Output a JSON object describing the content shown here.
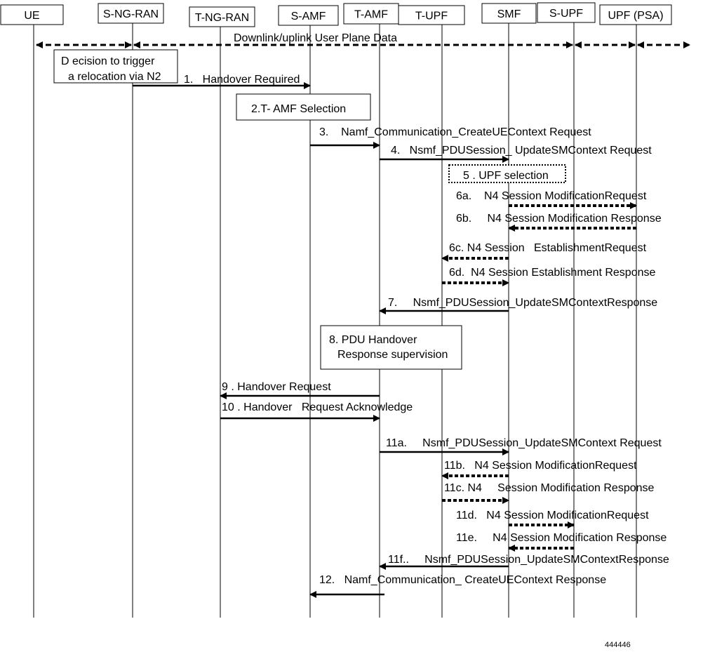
{
  "participants": [
    "UE",
    "S-NG-RAN",
    "T-NG-RAN",
    "S-AMF",
    "T-AMF",
    "T-UPF",
    "SMF",
    "S-UPF",
    "UPF (PSA)"
  ],
  "user_plane": {
    "label": "Downlink/uplink  User Plane Data"
  },
  "notes": [
    {
      "id": "decision",
      "lines": [
        "D  ecision to trigger",
        "a relocation via N2"
      ],
      "style": "solid"
    },
    {
      "id": "amf-selection",
      "lines": [
        "2.T-  AMF Selection"
      ],
      "style": "solid"
    },
    {
      "id": "upf-selection",
      "lines": [
        "5 . UPF selection"
      ],
      "style": "dotted"
    },
    {
      "id": "pdu-handover",
      "lines": [
        "8.  PDU Handover",
        "Response supervision"
      ],
      "style": "solid"
    }
  ],
  "messages": [
    {
      "label": "1.   Handover Required",
      "from": "S-NG-RAN",
      "to": "S-AMF",
      "style": "solid"
    },
    {
      "label": "3.    Namf_Communication_CreateUEContext Request",
      "from": "S-AMF",
      "to": "T-AMF",
      "style": "solid"
    },
    {
      "label": "4.   Nsmf_PDUSession_ UpdateSMContext Request",
      "from": "T-AMF",
      "to": "SMF",
      "style": "solid"
    },
    {
      "label": "6a.    N4 Session ModificationRequest",
      "from": "SMF",
      "to": "UPF (PSA)",
      "style": "dashed"
    },
    {
      "label": "6b.     N4 Session Modification Response",
      "from": "UPF (PSA)",
      "to": "SMF",
      "style": "dashed"
    },
    {
      "label": "6c. N4 Session   EstablishmentRequest",
      "from": "SMF",
      "to": "T-UPF",
      "style": "dashed"
    },
    {
      "label": "6d.  N4 Session Establishment Response",
      "from": "T-UPF",
      "to": "SMF",
      "style": "dashed"
    },
    {
      "label": "7.     Nsmf_PDUSession_UpdateSMContextResponse",
      "from": "SMF",
      "to": "T-AMF",
      "style": "solid"
    },
    {
      "label": "9 . Handover Request",
      "from": "T-AMF",
      "to": "T-NG-RAN",
      "style": "solid"
    },
    {
      "label": "10 . Handover   Request Acknowledge",
      "from": "T-NG-RAN",
      "to": "T-AMF",
      "style": "solid"
    },
    {
      "label": "11a.     Nsmf_PDUSession_UpdateSMContext Request",
      "from": "T-AMF",
      "to": "SMF",
      "style": "solid"
    },
    {
      "label": "11b.   N4 Session ModificationRequest",
      "from": "SMF",
      "to": "T-UPF",
      "style": "dashed"
    },
    {
      "label": "11c. N4     Session Modification Response",
      "from": "T-UPF",
      "to": "SMF",
      "style": "dashed"
    },
    {
      "label": "11d.   N4 Session ModificationRequest",
      "from": "SMF",
      "to": "S-UPF",
      "style": "dashed"
    },
    {
      "label": "11e.     N4 Session Modification Response",
      "from": "S-UPF",
      "to": "SMF",
      "style": "dashed"
    },
    {
      "label": "11f..     Nsmf_PDUSession_UpdateSMContextResponse",
      "from": "SMF",
      "to": "T-AMF",
      "style": "solid"
    },
    {
      "label": "12.   Namf_Communication_ CreateUEContext Response",
      "from": "T-AMF",
      "to": "S-AMF",
      "style": "solid"
    }
  ],
  "figure_id": "444446"
}
